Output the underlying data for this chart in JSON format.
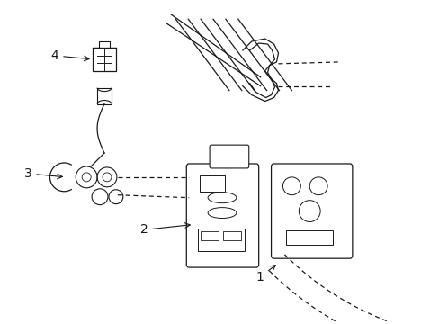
{
  "bg_color": "#ffffff",
  "line_color": "#1a1a1a",
  "lw": 0.9,
  "figsize": [
    4.89,
    3.6
  ],
  "dpi": 100
}
